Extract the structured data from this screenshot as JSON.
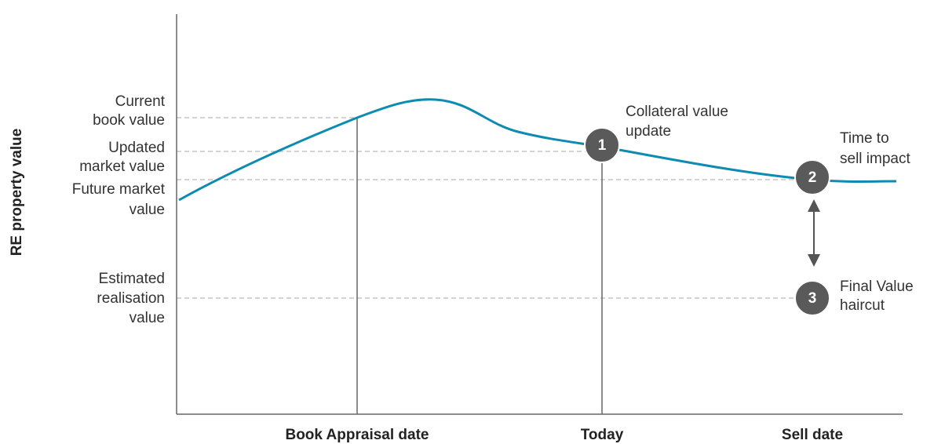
{
  "y_axis_label": "RE property value",
  "levels": [
    {
      "label": [
        "Current",
        "book value"
      ]
    },
    {
      "label": [
        "Updated",
        "market value"
      ]
    },
    {
      "label": [
        "Future market",
        "value"
      ]
    },
    {
      "label": [
        "Estimated",
        "realisation",
        "value"
      ]
    }
  ],
  "x_labels": [
    "Book Appraisal date",
    "Today",
    "Sell date"
  ],
  "markers": [
    {
      "number": "1",
      "label": [
        "Collateral value",
        "update"
      ]
    },
    {
      "number": "2",
      "label": [
        "Time to",
        "sell impact"
      ]
    },
    {
      "number": "3",
      "label": [
        "Final Value",
        "haircut"
      ]
    }
  ]
}
